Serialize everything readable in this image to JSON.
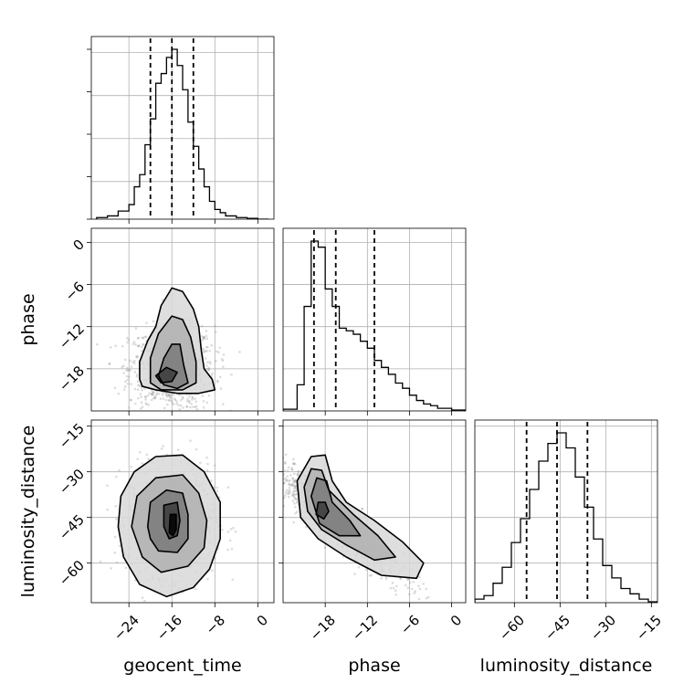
{
  "chart_data": {
    "type": "corner",
    "parameters": [
      "geocent_time",
      "phase",
      "luminosity_distance"
    ],
    "axis_labels": {
      "x": [
        "geocent_time",
        "phase",
        "luminosity_distance"
      ],
      "y": [
        "phase",
        "luminosity_distance"
      ]
    },
    "ranges": {
      "geocent_time": [
        -31,
        3
      ],
      "phase": [
        -24,
        2
      ],
      "luminosity_distance": [
        -73,
        -13
      ]
    },
    "ticks": {
      "geocent_time": [
        -24,
        -16,
        -8,
        0
      ],
      "phase": [
        -18,
        -12,
        -6,
        0
      ],
      "luminosity_distance": [
        -60,
        -45,
        -30,
        -15
      ]
    },
    "tick_labels": {
      "geocent_time": [
        "−24",
        "−16",
        "−8",
        "0"
      ],
      "phase": [
        "−18",
        "−12",
        "−6",
        "0"
      ],
      "luminosity_distance": [
        "−60",
        "−45",
        "−30",
        "−15"
      ]
    },
    "quantiles": {
      "geocent_time": [
        -20,
        -16,
        -12
      ],
      "phase": [
        -19.6,
        -16.5,
        -11
      ],
      "luminosity_distance": [
        -56,
        -46,
        -36
      ]
    },
    "histograms": {
      "geocent_time": {
        "bin_edges": [
          -30,
          -28,
          -26,
          -24,
          -23,
          -22,
          -21,
          -20,
          -19,
          -18,
          -17,
          -16,
          -15,
          -14,
          -13,
          -12,
          -11,
          -10,
          -9,
          -8,
          -7,
          -6,
          -4,
          -2,
          0,
          2
        ],
        "counts": [
          2,
          4,
          10,
          18,
          40,
          55,
          92,
          124,
          168,
          180,
          200,
          210,
          190,
          160,
          120,
          90,
          62,
          40,
          22,
          12,
          8,
          4,
          2,
          1,
          0
        ]
      },
      "phase": {
        "bin_edges": [
          -24,
          -22,
          -21,
          -20,
          -19,
          -18,
          -17,
          -16,
          -15,
          -14,
          -13,
          -12,
          -11,
          -10,
          -9,
          -8,
          -7,
          -6,
          -5,
          -4,
          -3,
          -2,
          0,
          2
        ],
        "counts": [
          2,
          30,
          120,
          195,
          188,
          140,
          120,
          95,
          92,
          88,
          80,
          72,
          58,
          50,
          42,
          32,
          26,
          18,
          12,
          8,
          6,
          3,
          1
        ]
      },
      "luminosity_distance": {
        "bin_edges": [
          -73,
          -70,
          -67,
          -64,
          -61,
          -58,
          -55,
          -52,
          -49,
          -46,
          -43,
          -40,
          -37,
          -34,
          -31,
          -28,
          -25,
          -22,
          -19,
          -16,
          -13
        ],
        "counts": [
          4,
          8,
          22,
          40,
          68,
          95,
          128,
          160,
          180,
          192,
          175,
          142,
          108,
          72,
          42,
          28,
          16,
          10,
          4,
          1
        ]
      }
    },
    "joint": [
      {
        "x": "geocent_time",
        "y": "phase",
        "center": [
          -16,
          -18
        ],
        "spread": [
          4,
          3
        ],
        "contours": [
          [
            [
              -22,
              -19.5
            ],
            [
              -22,
              -17
            ],
            [
              -20.5,
              -14
            ],
            [
              -19,
              -12
            ],
            [
              -18,
              -9
            ],
            [
              -16,
              -6.5
            ],
            [
              -14,
              -7
            ],
            [
              -12,
              -9.5
            ],
            [
              -11,
              -12
            ],
            [
              -10.5,
              -15.5
            ],
            [
              -10,
              -18
            ],
            [
              -8.5,
              -19.5
            ],
            [
              -8,
              -21
            ],
            [
              -11,
              -21.5
            ],
            [
              -15,
              -21.5
            ],
            [
              -19,
              -21
            ],
            [
              -21.5,
              -20.5
            ]
          ],
          [
            [
              -20,
              -20
            ],
            [
              -20,
              -16.5
            ],
            [
              -18.5,
              -13
            ],
            [
              -16,
              -10.5
            ],
            [
              -14,
              -11
            ],
            [
              -12.5,
              -13.5
            ],
            [
              -11.5,
              -17
            ],
            [
              -11.5,
              -20
            ],
            [
              -14,
              -21
            ],
            [
              -18,
              -21
            ]
          ],
          [
            [
              -18.5,
              -19
            ],
            [
              -17.5,
              -16.5
            ],
            [
              -16,
              -14.5
            ],
            [
              -14.5,
              -14.5
            ],
            [
              -13.8,
              -17.5
            ],
            [
              -13,
              -20
            ],
            [
              -15,
              -20.8
            ],
            [
              -17.5,
              -20.3
            ]
          ],
          [
            [
              -19,
              -19
            ],
            [
              -17,
              -17.8
            ],
            [
              -15,
              -18.5
            ],
            [
              -16,
              -19.8
            ],
            [
              -18,
              -20
            ]
          ]
        ]
      },
      {
        "x": "geocent_time",
        "y": "luminosity_distance",
        "center": [
          -16,
          -46
        ],
        "spread": [
          4,
          9
        ],
        "contours": [
          [
            [
              -26,
              -48
            ],
            [
              -25.5,
              -38
            ],
            [
              -23,
              -30
            ],
            [
              -19,
              -25
            ],
            [
              -14,
              -24.5
            ],
            [
              -10,
              -30
            ],
            [
              -7,
              -40
            ],
            [
              -7,
              -52
            ],
            [
              -9,
              -62
            ],
            [
              -12,
              -68
            ],
            [
              -17,
              -71
            ],
            [
              -22,
              -67
            ],
            [
              -25,
              -58
            ]
          ],
          [
            [
              -23.5,
              -48
            ],
            [
              -22.5,
              -38
            ],
            [
              -19,
              -32
            ],
            [
              -14,
              -31
            ],
            [
              -11,
              -37
            ],
            [
              -9.5,
              -46
            ],
            [
              -10,
              -55
            ],
            [
              -13,
              -61
            ],
            [
              -18,
              -63
            ],
            [
              -21.5,
              -58
            ]
          ],
          [
            [
              -20.5,
              -48
            ],
            [
              -20,
              -40
            ],
            [
              -17,
              -36
            ],
            [
              -14,
              -37
            ],
            [
              -13,
              -44
            ],
            [
              -13,
              -52
            ],
            [
              -15,
              -56.5
            ],
            [
              -18.5,
              -56
            ],
            [
              -20,
              -52
            ]
          ],
          [
            [
              -17.5,
              -48
            ],
            [
              -17.5,
              -41
            ],
            [
              -15,
              -40
            ],
            [
              -14.5,
              -46
            ],
            [
              -15,
              -51
            ],
            [
              -16.5,
              -52
            ]
          ],
          [
            [
              -16.5,
              -50
            ],
            [
              -16.3,
              -44
            ],
            [
              -15.2,
              -44
            ],
            [
              -15.2,
              -49
            ],
            [
              -15.8,
              -51
            ]
          ]
        ]
      },
      {
        "x": "phase",
        "y": "luminosity_distance",
        "center": [
          -17,
          -45
        ],
        "spread": [
          4,
          9
        ],
        "contours": [
          [
            [
              -22,
              -33
            ],
            [
              -20,
              -25
            ],
            [
              -18,
              -24.5
            ],
            [
              -17,
              -33
            ],
            [
              -15,
              -40
            ],
            [
              -11,
              -46
            ],
            [
              -7,
              -53
            ],
            [
              -4,
              -60
            ],
            [
              -5,
              -65
            ],
            [
              -10,
              -64
            ],
            [
              -15,
              -58
            ],
            [
              -19,
              -52
            ],
            [
              -21.5,
              -45
            ]
          ],
          [
            [
              -21,
              -35
            ],
            [
              -20,
              -29
            ],
            [
              -18.5,
              -29.5
            ],
            [
              -17.5,
              -36
            ],
            [
              -14,
              -44
            ],
            [
              -10.5,
              -51
            ],
            [
              -8,
              -58
            ],
            [
              -11,
              -59
            ],
            [
              -15,
              -54
            ],
            [
              -18.5,
              -49
            ],
            [
              -20.5,
              -43
            ]
          ],
          [
            [
              -20,
              -38
            ],
            [
              -19.2,
              -32
            ],
            [
              -17.8,
              -33
            ],
            [
              -17,
              -40
            ],
            [
              -14.5,
              -46
            ],
            [
              -13,
              -51
            ],
            [
              -16,
              -51
            ],
            [
              -18.8,
              -47
            ]
          ],
          [
            [
              -19.3,
              -44
            ],
            [
              -19,
              -40
            ],
            [
              -18,
              -40
            ],
            [
              -17.5,
              -43
            ],
            [
              -18.2,
              -45.5
            ]
          ]
        ]
      }
    ]
  }
}
